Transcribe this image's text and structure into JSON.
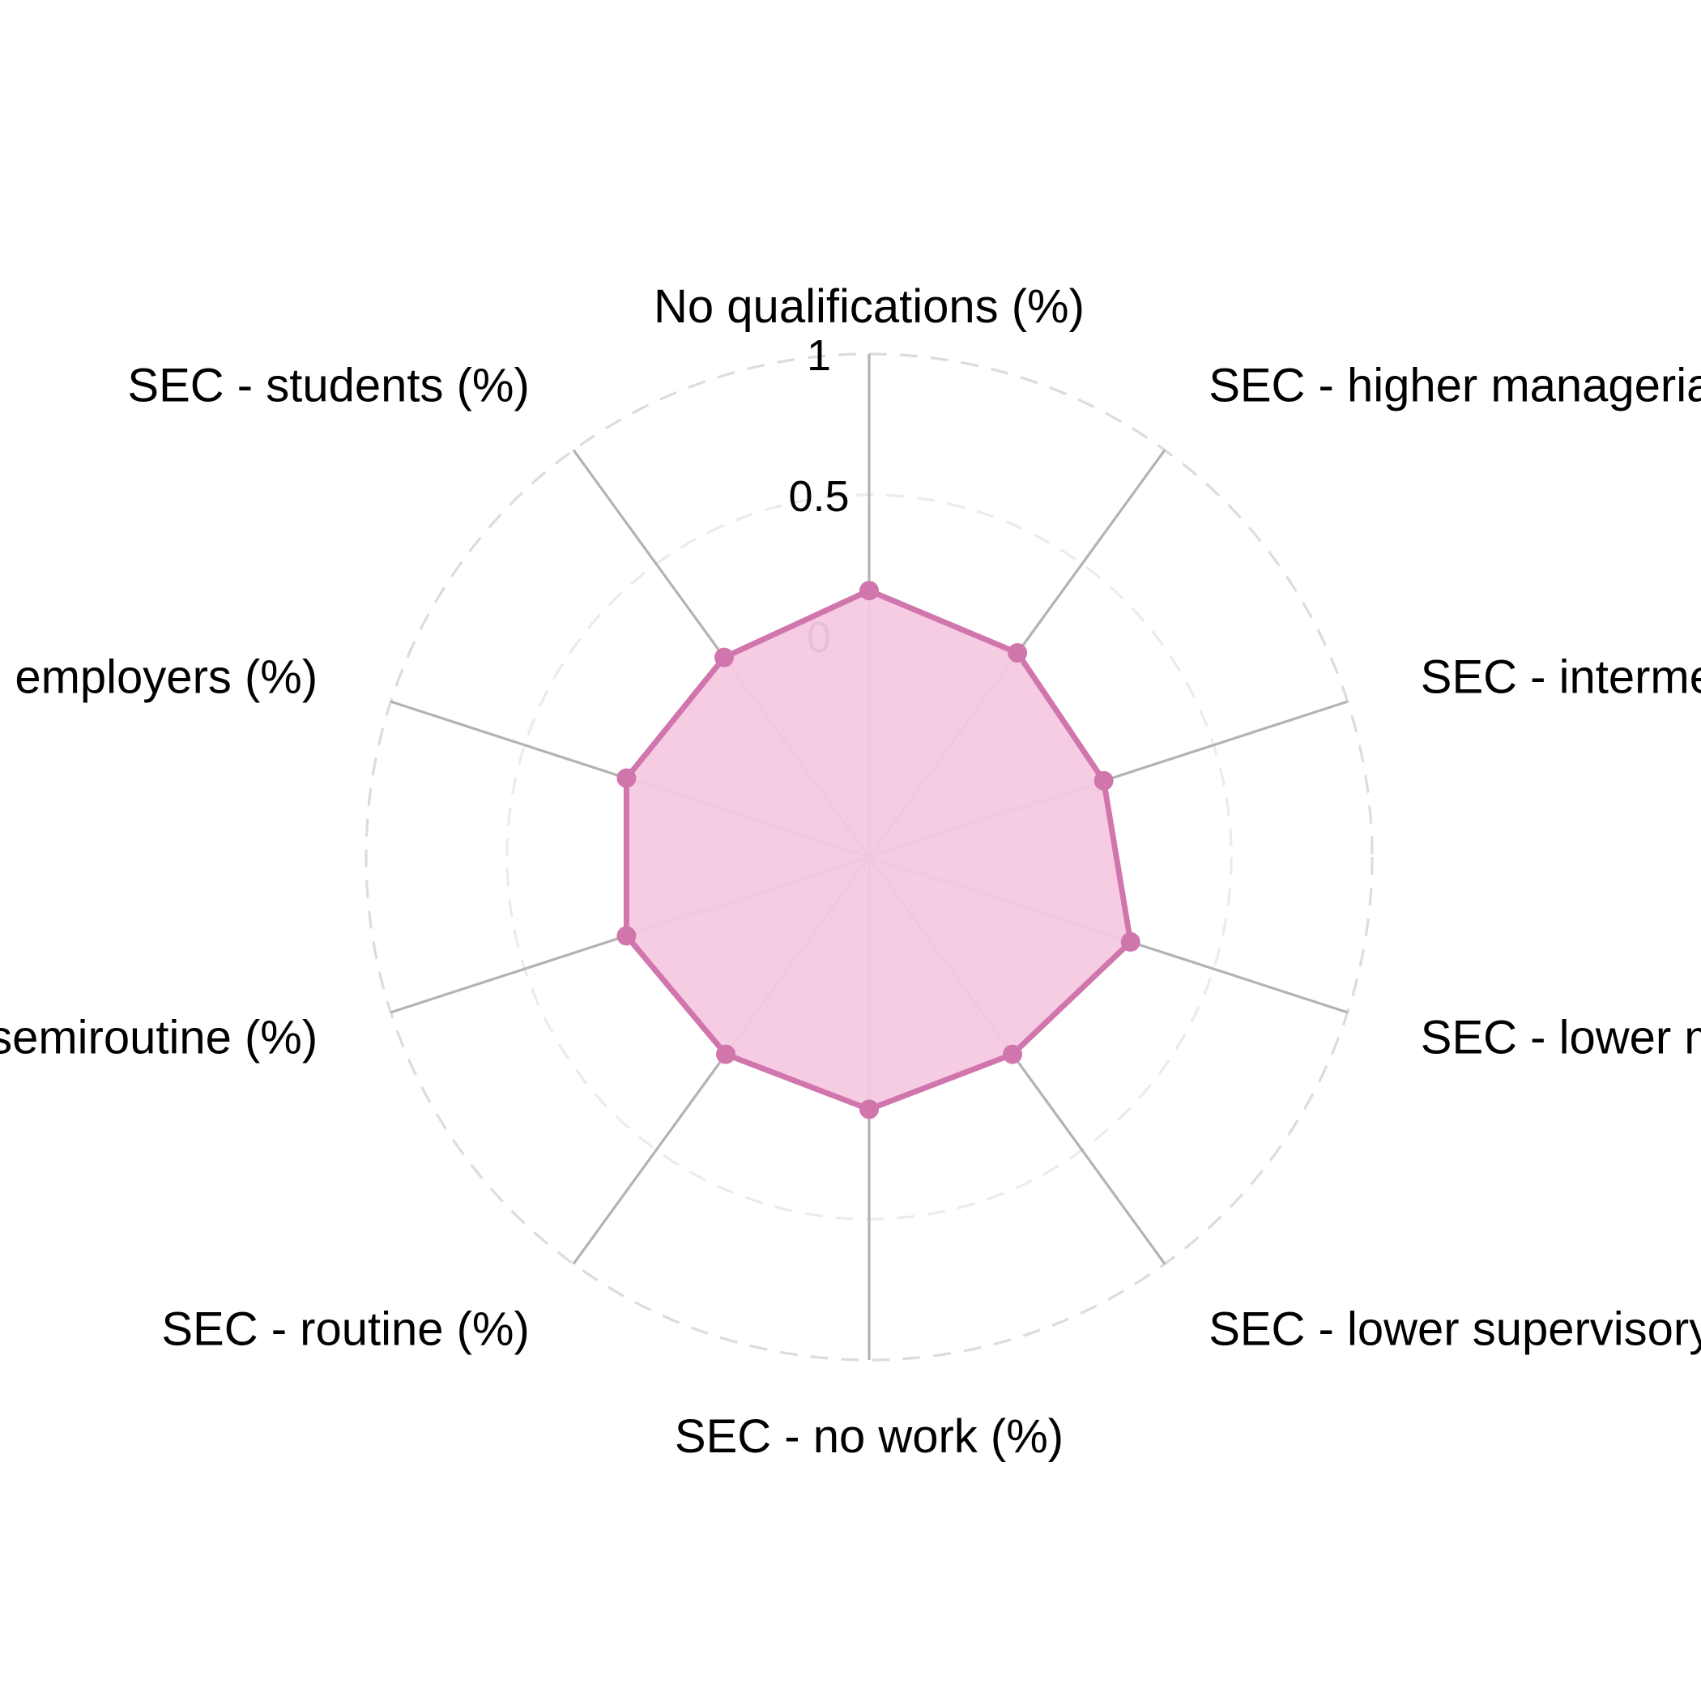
{
  "chart_data": {
    "type": "radar",
    "axes": [
      "No qualifications (%)",
      "SEC - higher managerial (%)",
      "SEC - intermediate (%)",
      "SEC - lower managerial (%)",
      "SEC - lower supervisory (%)",
      "SEC - no work (%)",
      "SEC - routine (%)",
      "SEC - semiroutine (%)",
      "SEC - small employers (%)",
      "SEC - students (%)"
    ],
    "radial_ticks": [
      "0",
      "0.5",
      "1"
    ],
    "rlim": [
      0,
      1
    ],
    "grid": true,
    "series": [
      {
        "values": [
          0.16,
          0.11,
          0.09,
          0.19,
          0.08,
          0.11,
          0.08,
          0.12,
          0.12,
          0.09
        ]
      }
    ],
    "colors": {
      "series_line": "#d175ad",
      "series_fill": "#f5c9e2",
      "spoke": "#b3b3b3",
      "outer_ring": "#dcdcdc",
      "inner_ring": "#ebebeb"
    }
  }
}
